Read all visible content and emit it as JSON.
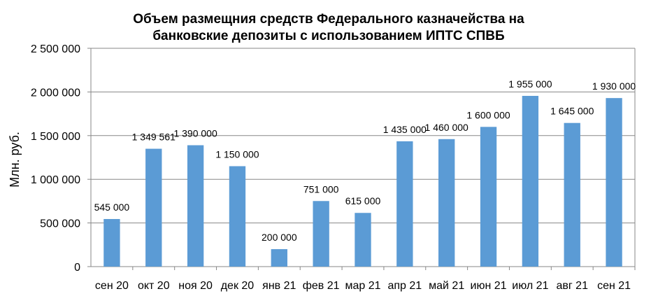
{
  "chart_data": {
    "type": "bar",
    "title_lines": [
      "Объем размещния средств Федерального казначейства на",
      "банковские депозиты с использованием ИПТС СПВБ"
    ],
    "ylabel": "Млн. руб.",
    "xlabel": "",
    "ylim": [
      0,
      2500000
    ],
    "yticks": [
      0,
      500000,
      1000000,
      1500000,
      2000000,
      2500000
    ],
    "ytick_labels": [
      "0",
      "500 000",
      "1 000 000",
      "1 500 000",
      "2 000 000",
      "2 500 000"
    ],
    "grid": true,
    "legend": "none",
    "bar_color": "#5B9BD5",
    "categories": [
      "сен 20",
      "окт 20",
      "ноя 20",
      "дек 20",
      "янв 21",
      "фев 21",
      "мар 21",
      "апр 21",
      "май 21",
      "июн 21",
      "июл 21",
      "авг 21",
      "сен 21"
    ],
    "values": [
      545000,
      1349561,
      1390000,
      1150000,
      200000,
      751000,
      615000,
      1435000,
      1460000,
      1600000,
      1955000,
      1645000,
      1930000
    ],
    "data_labels": [
      "545 000",
      "1 349 561",
      "1 390 000",
      "1 150 000",
      "200 000",
      "751 000",
      "615 000",
      "1 435 000",
      "1 460 000",
      "1 600 000",
      "1 955 000",
      "1 645 000",
      "1 930 000"
    ]
  }
}
